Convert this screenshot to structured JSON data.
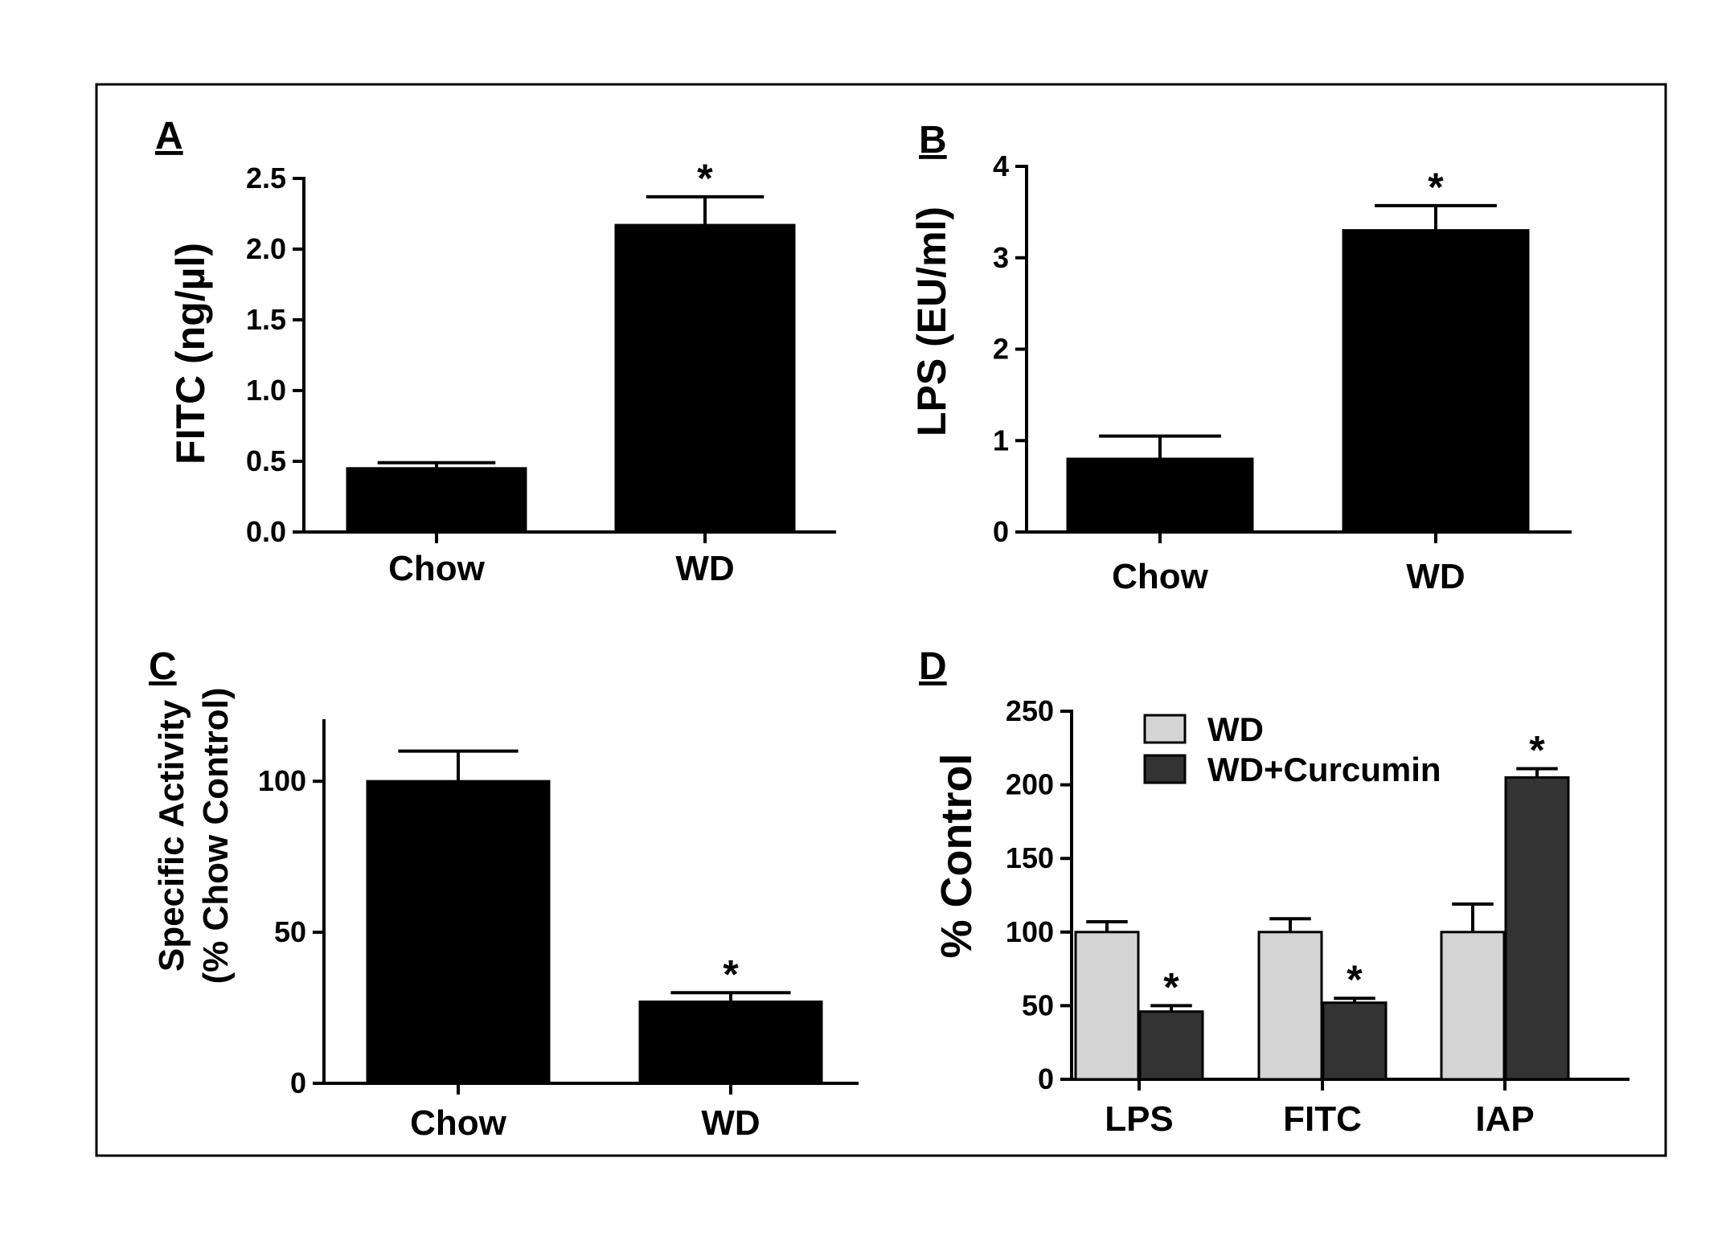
{
  "chart_data": [
    {
      "panel": "A",
      "type": "bar",
      "categories": [
        "Chow",
        "WD"
      ],
      "values": [
        0.45,
        2.17
      ],
      "errors": [
        0.04,
        0.2
      ],
      "significance": [
        "",
        "*"
      ],
      "ylabel": "FITC (ng/µl)",
      "ylim": [
        0,
        2.5
      ],
      "yticks": [
        "0.0",
        "0.5",
        "1.0",
        "1.5",
        "2.0",
        "2.5"
      ],
      "bar_color": "#000000"
    },
    {
      "panel": "B",
      "type": "bar",
      "categories": [
        "Chow",
        "WD"
      ],
      "values": [
        0.8,
        3.3
      ],
      "errors": [
        0.25,
        0.27
      ],
      "significance": [
        "",
        "*"
      ],
      "ylabel": "LPS (EU/ml)",
      "ylim": [
        0,
        4
      ],
      "yticks": [
        "0",
        "1",
        "2",
        "3",
        "4"
      ],
      "bar_color": "#000000"
    },
    {
      "panel": "C",
      "type": "bar",
      "categories": [
        "Chow",
        "WD"
      ],
      "values": [
        100,
        27
      ],
      "errors": [
        10,
        3
      ],
      "significance": [
        "",
        "*"
      ],
      "ylabel": [
        "Specific Activity",
        "(% Chow Control)"
      ],
      "ylim": [
        0,
        120
      ],
      "yticks": [
        "0",
        "50",
        "100"
      ],
      "bar_color": "#000000"
    },
    {
      "panel": "D",
      "type": "bar",
      "categories": [
        "LPS",
        "FITC",
        "IAP"
      ],
      "series": [
        {
          "name": "WD",
          "values": [
            100,
            100,
            100
          ],
          "errors": [
            7,
            9,
            19
          ],
          "color": "#d4d4d4",
          "significance": [
            "",
            "",
            ""
          ]
        },
        {
          "name": "WD+Curcumin",
          "values": [
            46,
            52,
            205
          ],
          "errors": [
            4,
            3,
            6
          ],
          "color": "#333333",
          "significance": [
            "*",
            "*",
            "*"
          ]
        }
      ],
      "ylabel": "% Control",
      "ylim": [
        0,
        250
      ],
      "yticks": [
        "0",
        "50",
        "100",
        "150",
        "200",
        "250"
      ],
      "legend": "top-left"
    }
  ]
}
